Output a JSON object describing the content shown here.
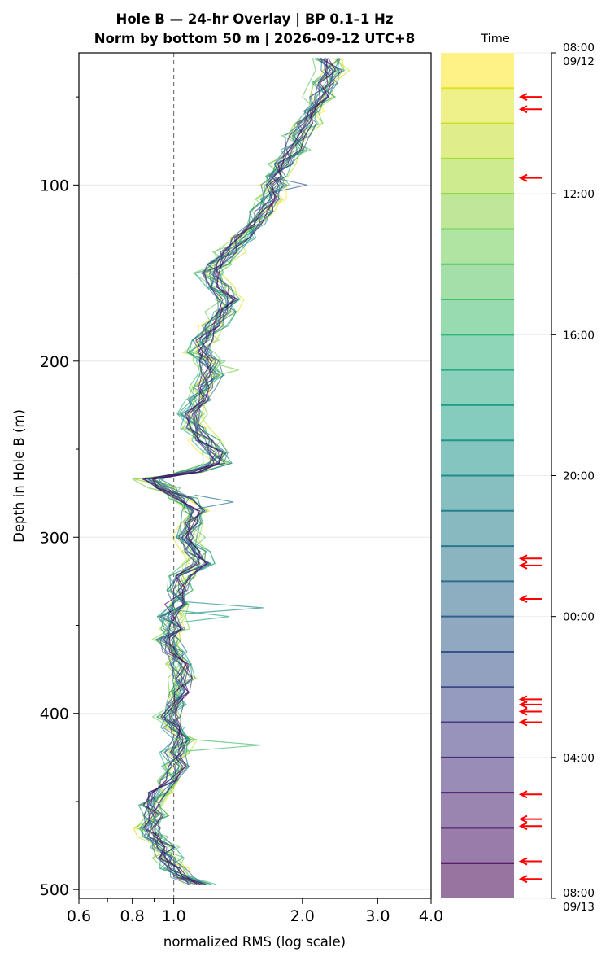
{
  "chart_data": {
    "type": "line",
    "title_line1": "Hole B — 24-hr Overlay  |  BP 0.1–1 Hz",
    "title_line2": "Norm by bottom 50 m  |  2026-09-12 UTC+8",
    "xlabel": "normalized RMS  (log scale)",
    "ylabel": "Depth in Hole B (m)",
    "x_scale": "log",
    "xlim": [
      0.6,
      4.0
    ],
    "ylim": [
      505,
      25
    ],
    "y_inverted": true,
    "xticks": [
      {
        "value": 0.6,
        "label": "0.6"
      },
      {
        "value": 0.8,
        "label": "0.8"
      },
      {
        "value": 1.0,
        "label": "1.0"
      },
      {
        "value": 2.0,
        "label": "2.0"
      },
      {
        "value": 3.0,
        "label": "3.0"
      },
      {
        "value": 4.0,
        "label": "4.0"
      }
    ],
    "x_minor_ticks": [
      0.7,
      0.9
    ],
    "yticks": [
      {
        "value": 100,
        "label": "100"
      },
      {
        "value": 200,
        "label": "200"
      },
      {
        "value": 300,
        "label": "300"
      },
      {
        "value": 400,
        "label": "400"
      },
      {
        "value": 500,
        "label": "500"
      }
    ],
    "y_minor_ticks": [
      50,
      150,
      250,
      350,
      450
    ],
    "grid": "horizontal",
    "reference_line": {
      "x": 1.0,
      "style": "dashed"
    },
    "colormap": "viridis",
    "series_count": 24,
    "series_alpha": 0.65,
    "depth_profile": {
      "depth": [
        28,
        35,
        42,
        50,
        58,
        65,
        72,
        80,
        88,
        95,
        100,
        108,
        115,
        122,
        130,
        138,
        145,
        150,
        158,
        165,
        172,
        180,
        188,
        195,
        200,
        208,
        215,
        222,
        230,
        238,
        245,
        252,
        258,
        263,
        267,
        272,
        278,
        285,
        292,
        300,
        308,
        315,
        322,
        330,
        338,
        345,
        352,
        358,
        365,
        372,
        380,
        388,
        395,
        402,
        408,
        415,
        422,
        430,
        438,
        445,
        452,
        458,
        465,
        470,
        476,
        482,
        488,
        493,
        497
      ],
      "rms": [
        2.3,
        2.35,
        2.28,
        2.2,
        2.15,
        2.05,
        1.95,
        1.9,
        1.8,
        1.75,
        1.72,
        1.68,
        1.62,
        1.55,
        1.45,
        1.35,
        1.25,
        1.22,
        1.28,
        1.35,
        1.3,
        1.25,
        1.18,
        1.15,
        1.2,
        1.22,
        1.18,
        1.15,
        1.1,
        1.12,
        1.18,
        1.25,
        1.28,
        1.1,
        0.88,
        0.95,
        1.05,
        1.12,
        1.1,
        1.08,
        1.12,
        1.15,
        1.05,
        1.02,
        1.0,
        0.98,
        1.0,
        0.97,
        1.0,
        1.03,
        1.06,
        1.04,
        1.02,
        0.98,
        1.0,
        1.03,
        1.0,
        1.02,
        0.98,
        0.92,
        0.88,
        0.9,
        0.88,
        0.9,
        0.95,
        0.97,
        1.0,
        1.05,
        1.15
      ]
    },
    "series": [
      {
        "time": "08:00",
        "jitter": 0.06,
        "seed": 11
      },
      {
        "time": "09:00",
        "jitter": 0.055,
        "seed": 23
      },
      {
        "time": "10:00",
        "jitter": 0.06,
        "seed": 37
      },
      {
        "time": "11:00",
        "jitter": 0.05,
        "seed": 41
      },
      {
        "time": "12:00",
        "jitter": 0.055,
        "seed": 53
      },
      {
        "time": "13:00",
        "jitter": 0.06,
        "seed": 67
      },
      {
        "time": "14:00",
        "jitter": 0.06,
        "seed": 71
      },
      {
        "time": "15:00",
        "jitter": 0.055,
        "seed": 83
      },
      {
        "time": "16:00",
        "jitter": 0.05,
        "seed": 97
      },
      {
        "time": "17:00",
        "jitter": 0.05,
        "seed": 101
      },
      {
        "time": "18:00",
        "jitter": 0.055,
        "seed": 113
      },
      {
        "time": "19:00",
        "jitter": 0.05,
        "seed": 127
      },
      {
        "time": "20:00",
        "jitter": 0.045,
        "seed": 131
      },
      {
        "time": "21:00",
        "jitter": 0.045,
        "seed": 149
      },
      {
        "time": "22:00",
        "jitter": 0.045,
        "seed": 151
      },
      {
        "time": "23:00",
        "jitter": 0.04,
        "seed": 163
      },
      {
        "time": "00:00",
        "jitter": 0.04,
        "seed": 173
      },
      {
        "time": "01:00",
        "jitter": 0.04,
        "seed": 181
      },
      {
        "time": "02:00",
        "jitter": 0.035,
        "seed": 191
      },
      {
        "time": "03:00",
        "jitter": 0.035,
        "seed": 197
      },
      {
        "time": "04:00",
        "jitter": 0.035,
        "seed": 211
      },
      {
        "time": "05:00",
        "jitter": 0.035,
        "seed": 223
      },
      {
        "time": "06:00",
        "jitter": 0.03,
        "seed": 227
      },
      {
        "time": "07:00",
        "jitter": 0.03,
        "seed": 239
      }
    ],
    "spikes": [
      {
        "depth": 100,
        "rms": 2.05
      },
      {
        "depth": 280,
        "rms": 1.38
      },
      {
        "depth": 340,
        "rms": 1.62
      },
      {
        "depth": 345,
        "rms": 1.35
      },
      {
        "depth": 418,
        "rms": 1.6
      },
      {
        "depth": 205,
        "rms": 1.42
      }
    ],
    "colorbar": {
      "title": "Time",
      "n_bands": 24,
      "ticks": [
        {
          "hours": 0,
          "label": "08:00",
          "sublabel": "09/12"
        },
        {
          "hours": 4,
          "label": "12:00",
          "sublabel": ""
        },
        {
          "hours": 8,
          "label": "16:00",
          "sublabel": ""
        },
        {
          "hours": 12,
          "label": "20:00",
          "sublabel": ""
        },
        {
          "hours": 16,
          "label": "00:00",
          "sublabel": ""
        },
        {
          "hours": 20,
          "label": "04:00",
          "sublabel": ""
        },
        {
          "hours": 24,
          "label": "08:00",
          "sublabel": "09/13"
        }
      ],
      "arrow_color": "#ff0000",
      "marker_hours": [
        1.25,
        1.6,
        3.55,
        14.35,
        14.55,
        15.5,
        18.35,
        18.5,
        18.7,
        19.0,
        21.05,
        21.75,
        21.95,
        22.95,
        23.45
      ]
    }
  }
}
